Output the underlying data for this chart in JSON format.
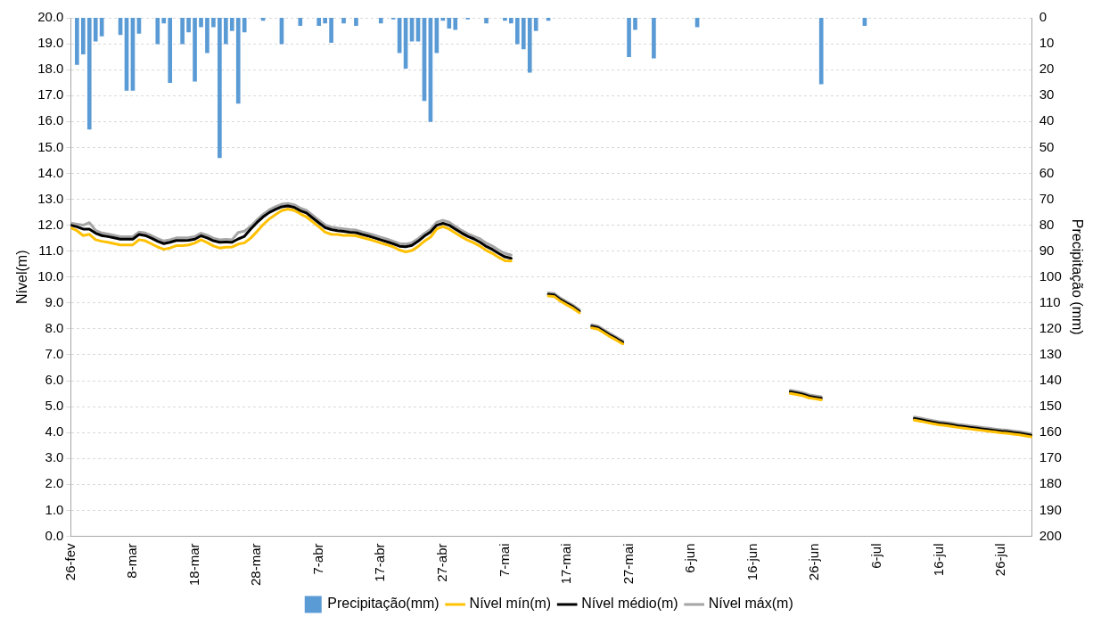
{
  "chart_data": {
    "type": "line",
    "ylabel": "Nível(m)",
    "y2label": "Precipitação (mm)",
    "x": [
      "--02-26",
      "--02-27",
      "--02-28",
      "--03-01",
      "--03-02",
      "--03-03",
      "--03-04",
      "--03-05",
      "--03-06",
      "--03-07",
      "--03-08",
      "--03-09",
      "--03-10",
      "--03-11",
      "--03-12",
      "--03-13",
      "--03-14",
      "--03-15",
      "--03-16",
      "--03-17",
      "--03-18",
      "--03-19",
      "--03-20",
      "--03-21",
      "--03-22",
      "--03-23",
      "--03-24",
      "--03-25",
      "--03-26",
      "--03-27",
      "--03-28",
      "--03-29",
      "--03-30",
      "--03-31",
      "--04-01",
      "--04-02",
      "--04-03",
      "--04-04",
      "--04-05",
      "--04-06",
      "--04-07",
      "--04-08",
      "--04-09",
      "--04-10",
      "--04-11",
      "--04-12",
      "--04-13",
      "--04-14",
      "--04-15",
      "--04-16",
      "--04-17",
      "--04-18",
      "--04-19",
      "--04-20",
      "--04-21",
      "--04-22",
      "--04-23",
      "--04-24",
      "--04-25",
      "--04-26",
      "--04-27",
      "--04-28",
      "--04-29",
      "--04-30",
      "--05-01",
      "--05-02",
      "--05-03",
      "--05-04",
      "--05-05",
      "--05-06",
      "--05-07",
      "--05-08",
      "--05-09",
      "--05-10",
      "--05-11",
      "--05-12",
      "--05-13",
      "--05-14",
      "--05-15",
      "--05-16",
      "--05-17",
      "--05-18",
      "--05-19",
      "--05-20",
      "--05-21",
      "--05-22",
      "--05-23",
      "--05-24",
      "--05-25",
      "--05-26",
      "--05-27",
      "--05-28",
      "--05-29",
      "--05-30",
      "--05-31",
      "--06-01",
      "--06-02",
      "--06-03",
      "--06-04",
      "--06-05",
      "--06-06",
      "--06-07",
      "--06-08",
      "--06-09",
      "--06-10",
      "--06-11",
      "--06-12",
      "--06-13",
      "--06-14",
      "--06-15",
      "--06-16",
      "--06-17",
      "--06-18",
      "--06-19",
      "--06-20",
      "--06-21",
      "--06-22",
      "--06-23",
      "--06-24",
      "--06-25",
      "--06-26",
      "--06-27",
      "--06-28",
      "--06-29",
      "--06-30",
      "--07-01",
      "--07-02",
      "--07-03",
      "--07-04",
      "--07-05",
      "--07-06",
      "--07-07",
      "--07-08",
      "--07-09",
      "--07-10",
      "--07-11",
      "--07-12",
      "--07-13",
      "--07-14",
      "--07-15",
      "--07-16",
      "--07-17",
      "--07-18",
      "--07-19",
      "--07-20",
      "--07-21",
      "--07-22",
      "--07-23",
      "--07-24",
      "--07-25",
      "--07-26",
      "--07-27",
      "--07-28",
      "--07-29",
      "--07-30",
      "--07-31"
    ],
    "series": [
      {
        "name": "Precipitação(mm)",
        "type": "bar",
        "axis": "y2",
        "color": "#5b9bd5",
        "x": [
          "--02-27",
          "--02-28",
          "--03-01",
          "--03-02",
          "--03-03",
          "--03-06",
          "--03-07",
          "--03-08",
          "--03-09",
          "--03-12",
          "--03-13",
          "--03-14",
          "--03-16",
          "--03-17",
          "--03-18",
          "--03-19",
          "--03-20",
          "--03-21",
          "--03-22",
          "--03-23",
          "--03-24",
          "--03-25",
          "--03-26",
          "--03-29",
          "--04-01",
          "--04-04",
          "--04-07",
          "--04-08",
          "--04-09",
          "--04-11",
          "--04-13",
          "--04-17",
          "--04-19",
          "--04-20",
          "--04-21",
          "--04-22",
          "--04-23",
          "--04-24",
          "--04-25",
          "--04-26",
          "--04-27",
          "--04-28",
          "--04-29",
          "--05-01",
          "--05-04",
          "--05-07",
          "--05-08",
          "--05-09",
          "--05-10",
          "--05-11",
          "--05-12",
          "--05-14",
          "--05-27",
          "--05-28",
          "--05-31",
          "--06-07",
          "--06-27",
          "--07-04"
        ],
        "values": [
          18,
          14,
          43,
          9,
          7,
          6.5,
          28,
          28,
          6,
          10,
          2,
          25,
          10,
          5.5,
          24.5,
          3.5,
          13.5,
          3.5,
          54,
          10,
          5,
          33,
          5.5,
          1,
          10,
          3,
          3,
          2,
          9.5,
          2,
          3,
          2,
          0.5,
          13.5,
          19.5,
          9,
          9,
          32,
          40,
          13.5,
          1,
          4,
          4.5,
          0.5,
          2,
          1,
          2,
          10,
          12,
          21,
          5,
          1,
          15,
          4.5,
          15.5,
          3.5,
          25.5,
          3
        ]
      },
      {
        "name": "Nível mín(m)",
        "color": "#ffc000",
        "values": [
          11.9,
          11.79,
          11.6,
          11.65,
          11.44,
          11.38,
          11.34,
          11.29,
          11.24,
          11.24,
          11.24,
          11.44,
          11.4,
          11.28,
          11.16,
          11.07,
          11.12,
          11.21,
          11.21,
          11.24,
          11.31,
          11.44,
          11.33,
          11.2,
          11.12,
          11.15,
          11.16,
          11.27,
          11.32,
          11.5,
          11.75,
          12.02,
          12.24,
          12.41,
          12.56,
          12.62,
          12.57,
          12.44,
          12.32,
          12.13,
          11.94,
          11.73,
          11.65,
          11.64,
          11.61,
          11.61,
          11.59,
          11.52,
          11.46,
          11.39,
          11.31,
          11.24,
          11.16,
          11.04,
          10.97,
          11.02,
          11.18,
          11.38,
          11.54,
          11.85,
          11.95,
          11.85,
          11.7,
          11.55,
          11.42,
          11.32,
          11.19,
          11.03,
          10.91,
          10.76,
          10.63,
          10.62,
          null,
          null,
          null,
          null,
          null,
          9.27,
          9.24,
          9.06,
          8.92,
          8.79,
          8.62,
          null,
          8.04,
          7.99,
          7.84,
          7.69,
          7.56,
          7.42,
          null,
          null,
          null,
          null,
          null,
          null,
          null,
          null,
          null,
          null,
          null,
          null,
          null,
          null,
          null,
          null,
          null,
          null,
          null,
          null,
          null,
          null,
          null,
          null,
          null,
          null,
          5.51,
          5.47,
          5.42,
          5.34,
          5.3,
          5.26,
          null,
          null,
          null,
          null,
          null,
          null,
          null,
          null,
          null,
          null,
          null,
          null,
          null,
          null,
          4.48,
          4.44,
          4.39,
          4.34,
          4.3,
          4.27,
          4.24,
          4.2,
          4.17,
          4.14,
          4.11,
          4.08,
          4.05,
          4.02,
          3.99,
          3.97,
          3.94,
          3.91,
          3.87,
          3.83
        ]
      },
      {
        "name": "Nível médio(m)",
        "color": "#000000",
        "values": [
          12.0,
          11.94,
          11.85,
          11.85,
          11.69,
          11.6,
          11.56,
          11.51,
          11.46,
          11.46,
          11.46,
          11.64,
          11.6,
          11.5,
          11.38,
          11.29,
          11.34,
          11.41,
          11.41,
          11.42,
          11.46,
          11.59,
          11.51,
          11.4,
          11.34,
          11.35,
          11.34,
          11.47,
          11.57,
          11.85,
          12.1,
          12.32,
          12.49,
          12.61,
          12.71,
          12.74,
          12.69,
          12.56,
          12.47,
          12.28,
          12.09,
          11.91,
          11.83,
          11.79,
          11.76,
          11.73,
          11.71,
          11.64,
          11.58,
          11.51,
          11.43,
          11.36,
          11.28,
          11.19,
          11.17,
          11.22,
          11.38,
          11.58,
          11.74,
          12.0,
          12.07,
          12.0,
          11.85,
          11.7,
          11.57,
          11.47,
          11.34,
          11.18,
          11.06,
          10.91,
          10.78,
          10.72,
          null,
          null,
          null,
          null,
          null,
          9.33,
          9.3,
          9.12,
          8.98,
          8.85,
          8.68,
          null,
          8.1,
          8.05,
          7.9,
          7.75,
          7.62,
          7.48,
          null,
          null,
          null,
          null,
          null,
          null,
          null,
          null,
          null,
          null,
          null,
          null,
          null,
          null,
          null,
          null,
          null,
          null,
          null,
          null,
          null,
          null,
          null,
          null,
          null,
          null,
          5.57,
          5.53,
          5.48,
          5.4,
          5.36,
          5.32,
          null,
          null,
          null,
          null,
          null,
          null,
          null,
          null,
          null,
          null,
          null,
          null,
          null,
          null,
          4.54,
          4.5,
          4.45,
          4.4,
          4.36,
          4.33,
          4.3,
          4.26,
          4.23,
          4.2,
          4.17,
          4.14,
          4.11,
          4.08,
          4.05,
          4.03,
          4.0,
          3.97,
          3.93,
          3.89
        ]
      },
      {
        "name": "Nível máx(m)",
        "color": "#a5a5a5",
        "values": [
          12.08,
          12.04,
          12.0,
          12.1,
          11.8,
          11.7,
          11.66,
          11.61,
          11.56,
          11.56,
          11.56,
          11.74,
          11.7,
          11.6,
          11.48,
          11.39,
          11.44,
          11.51,
          11.51,
          11.52,
          11.56,
          11.69,
          11.61,
          11.5,
          11.44,
          11.45,
          11.44,
          11.72,
          11.77,
          11.95,
          12.2,
          12.42,
          12.59,
          12.71,
          12.81,
          12.84,
          12.79,
          12.66,
          12.57,
          12.38,
          12.19,
          12.01,
          11.93,
          11.89,
          11.86,
          11.83,
          11.81,
          11.74,
          11.68,
          11.61,
          11.53,
          11.46,
          11.38,
          11.29,
          11.27,
          11.32,
          11.48,
          11.68,
          11.84,
          12.12,
          12.19,
          12.12,
          11.95,
          11.8,
          11.67,
          11.57,
          11.47,
          11.31,
          11.19,
          11.04,
          10.91,
          10.85,
          null,
          null,
          null,
          null,
          null,
          9.39,
          9.36,
          9.18,
          9.04,
          8.91,
          8.74,
          null,
          8.16,
          8.11,
          7.96,
          7.81,
          7.68,
          7.54,
          null,
          null,
          null,
          null,
          null,
          null,
          null,
          null,
          null,
          null,
          null,
          null,
          null,
          null,
          null,
          null,
          null,
          null,
          null,
          null,
          null,
          null,
          null,
          null,
          null,
          null,
          5.63,
          5.59,
          5.54,
          5.46,
          5.42,
          5.38,
          null,
          null,
          null,
          null,
          null,
          null,
          null,
          null,
          null,
          null,
          null,
          null,
          null,
          null,
          4.6,
          4.56,
          4.51,
          4.46,
          4.42,
          4.39,
          4.36,
          4.32,
          4.29,
          4.26,
          4.23,
          4.2,
          4.17,
          4.14,
          4.11,
          4.09,
          4.06,
          4.03,
          3.99,
          3.95
        ]
      }
    ],
    "xlim": [
      "--02-26",
      "--07-31"
    ],
    "xticks": [
      {
        "value": "--02-26",
        "label": "26-fev"
      },
      {
        "value": "--03-08",
        "label": "8-mar"
      },
      {
        "value": "--03-18",
        "label": "18-mar"
      },
      {
        "value": "--03-28",
        "label": "28-mar"
      },
      {
        "value": "--04-07",
        "label": "7-abr"
      },
      {
        "value": "--04-17",
        "label": "17-abr"
      },
      {
        "value": "--04-27",
        "label": "27-abr"
      },
      {
        "value": "--05-07",
        "label": "7-mai"
      },
      {
        "value": "--05-17",
        "label": "17-mai"
      },
      {
        "value": "--05-27",
        "label": "27-mai"
      },
      {
        "value": "--06-06",
        "label": "6-jun"
      },
      {
        "value": "--06-16",
        "label": "16-jun"
      },
      {
        "value": "--06-26",
        "label": "26-jun"
      },
      {
        "value": "--07-06",
        "label": "6-jul"
      },
      {
        "value": "--07-16",
        "label": "16-jul"
      },
      {
        "value": "--07-26",
        "label": "26-jul"
      }
    ],
    "ylim": [
      0,
      20
    ],
    "yticks": [
      {
        "value": 0,
        "label": "0.0"
      },
      {
        "value": 1,
        "label": "1.0"
      },
      {
        "value": 2,
        "label": "2.0"
      },
      {
        "value": 3,
        "label": "3.0"
      },
      {
        "value": 4,
        "label": "4.0"
      },
      {
        "value": 5,
        "label": "5.0"
      },
      {
        "value": 6,
        "label": "6.0"
      },
      {
        "value": 7,
        "label": "7.0"
      },
      {
        "value": 8,
        "label": "8.0"
      },
      {
        "value": 9,
        "label": "9.0"
      },
      {
        "value": 10,
        "label": "10.0"
      },
      {
        "value": 11,
        "label": "11.0"
      },
      {
        "value": 12,
        "label": "12.0"
      },
      {
        "value": 13,
        "label": "13.0"
      },
      {
        "value": 14,
        "label": "14.0"
      },
      {
        "value": 15,
        "label": "15.0"
      },
      {
        "value": 16,
        "label": "16.0"
      },
      {
        "value": 17,
        "label": "17.0"
      },
      {
        "value": 18,
        "label": "18.0"
      },
      {
        "value": 19,
        "label": "19.0"
      },
      {
        "value": 20,
        "label": "20.0"
      }
    ],
    "y2lim": [
      200,
      0
    ],
    "y2ticks": [
      0,
      10,
      20,
      30,
      40,
      50,
      60,
      70,
      80,
      90,
      100,
      110,
      120,
      130,
      140,
      150,
      160,
      170,
      180,
      190,
      200
    ],
    "grid": "y",
    "legend": "bottom",
    "marker": "none",
    "line_style": "solid"
  }
}
